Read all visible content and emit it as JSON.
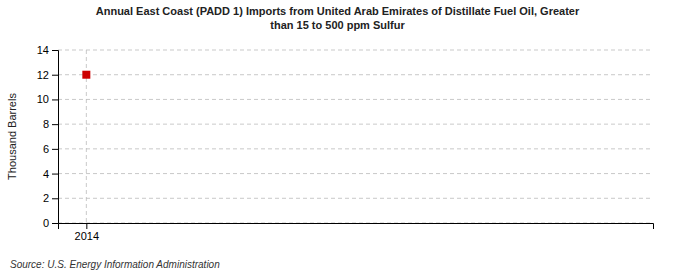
{
  "chart_data": {
    "type": "scatter",
    "title": "Annual East Coast (PADD 1) Imports from United Arab Emirates of Distillate Fuel Oil, Greater\nthan 15 to 500 ppm Sulfur",
    "y_label": "Thousand Barrels",
    "source": "Source: U.S. Energy Information Administration",
    "x": [
      2014
    ],
    "values": [
      12
    ],
    "color": "#cc0000",
    "marker": "square",
    "xlim": [
      2013.7,
      2020.0
    ],
    "ylim": [
      0,
      14
    ],
    "xticks": [
      2014
    ],
    "yticks": [
      0,
      2,
      4,
      6,
      8,
      10,
      12,
      14
    ],
    "grid": true
  }
}
